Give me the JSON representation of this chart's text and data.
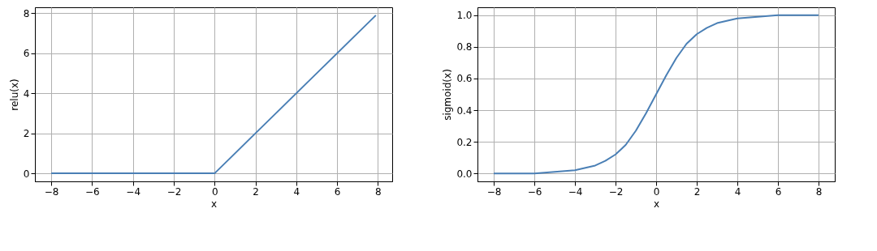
{
  "chart_data": [
    {
      "type": "line",
      "xlabel": "x",
      "ylabel": "relu(x)",
      "x": [
        -8,
        0,
        7.9
      ],
      "series": [
        {
          "color": "#4a7fb5",
          "values": [
            0,
            0,
            7.9
          ]
        }
      ],
      "xlim": [
        -8.8,
        8.7
      ],
      "ylim": [
        -0.4,
        8.3
      ],
      "xticks": [
        {
          "value": -8,
          "label": "−8"
        },
        {
          "value": -6,
          "label": "−6"
        },
        {
          "value": -4,
          "label": "−4"
        },
        {
          "value": -2,
          "label": "−2"
        },
        0,
        2,
        4,
        6,
        8
      ],
      "yticks": [
        0,
        2,
        4,
        6,
        8
      ],
      "grid": true,
      "marker": "none",
      "line_style": "solid"
    },
    {
      "type": "line",
      "xlabel": "x",
      "ylabel": "sigmoid(x)",
      "x": [
        -8,
        -7,
        -6,
        -5,
        -4,
        -3,
        -2.5,
        -2,
        -1.5,
        -1,
        -0.5,
        0,
        0.5,
        1,
        1.5,
        2,
        2.5,
        3,
        4,
        5,
        6,
        7,
        8
      ],
      "series": [
        {
          "color": "#4a7fb5",
          "values": [
            0.0,
            0.0,
            0.0,
            0.01,
            0.02,
            0.05,
            0.08,
            0.12,
            0.18,
            0.27,
            0.38,
            0.5,
            0.62,
            0.73,
            0.82,
            0.88,
            0.92,
            0.95,
            0.98,
            0.99,
            1.0,
            1.0,
            1.0
          ]
        }
      ],
      "xlim": [
        -8.8,
        8.8
      ],
      "ylim": [
        -0.05,
        1.05
      ],
      "xticks": [
        {
          "value": -8,
          "label": "−8"
        },
        {
          "value": -6,
          "label": "−6"
        },
        {
          "value": -4,
          "label": "−4"
        },
        {
          "value": -2,
          "label": "−2"
        },
        0,
        2,
        4,
        6,
        8
      ],
      "yticks": [
        {
          "value": 0,
          "label": "0.0"
        },
        0.2,
        0.4,
        0.6,
        0.8,
        {
          "value": 1,
          "label": "1.0"
        }
      ],
      "grid": true,
      "marker": "none",
      "line_style": "solid"
    }
  ]
}
